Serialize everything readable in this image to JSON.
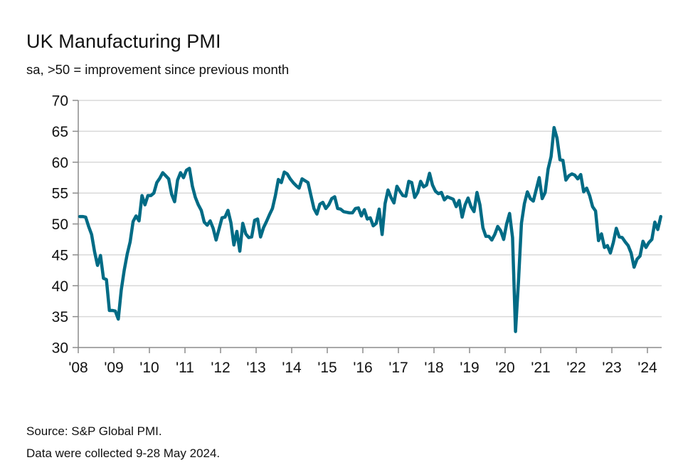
{
  "header": {
    "title": "UK Manufacturing PMI",
    "subtitle": "sa, >50 = improvement since previous month"
  },
  "footer": {
    "source": "Source: S&P Global PMI.",
    "note": "Data were collected 9-28 May 2024."
  },
  "colors": {
    "series": "#006b85",
    "grid": "#d9d9d9",
    "axis": "#8c8c8c"
  },
  "chart_data": {
    "type": "line",
    "title": "UK Manufacturing PMI",
    "subtitle": "sa, >50 = improvement since previous month",
    "xlabel": "",
    "ylabel": "",
    "ylim": [
      30,
      70
    ],
    "yticks": [
      30,
      35,
      40,
      45,
      50,
      55,
      60,
      65,
      70
    ],
    "xlim": [
      "2008-01",
      "2024-05"
    ],
    "xticks": [
      "'08",
      "'09",
      "'10",
      "'11",
      "'12",
      "'13",
      "'14",
      "'15",
      "'16",
      "'17",
      "'18",
      "'19",
      "'20",
      "'21",
      "'22",
      "'23",
      "'24"
    ],
    "grid": "horizontal",
    "legend": "none",
    "start": "2008-01",
    "frequency": "monthly",
    "series": [
      {
        "name": "UK Manufacturing PMI",
        "values": [
          51.2,
          51.2,
          51.1,
          49.6,
          48.3,
          45.5,
          43.3,
          44.9,
          41.2,
          41.0,
          36.0,
          36.0,
          35.9,
          34.6,
          39.3,
          42.5,
          45.1,
          47.1,
          50.4,
          51.3,
          50.5,
          54.6,
          53.1,
          54.6,
          54.6,
          55.0,
          56.7,
          57.4,
          58.3,
          57.8,
          57.3,
          54.8,
          53.6,
          57.1,
          58.3,
          57.5,
          58.7,
          59.0,
          56.1,
          54.3,
          53.1,
          52.2,
          50.3,
          49.8,
          50.5,
          49.3,
          47.4,
          49.2,
          51.0,
          51.1,
          52.2,
          50.2,
          46.6,
          48.8,
          45.6,
          50.1,
          48.4,
          47.8,
          47.9,
          50.6,
          50.8,
          47.9,
          49.4,
          50.4,
          51.5,
          52.5,
          54.6,
          57.2,
          56.7,
          58.4,
          58.1,
          57.3,
          56.7,
          56.2,
          55.8,
          57.3,
          57.0,
          56.7,
          54.6,
          52.5,
          51.6,
          53.2,
          53.5,
          52.5,
          53.1,
          54.1,
          54.4,
          52.5,
          52.4,
          52.0,
          51.9,
          51.8,
          51.8,
          52.5,
          52.6,
          51.3,
          52.3,
          50.8,
          51.0,
          49.7,
          50.1,
          52.4,
          48.3,
          53.3,
          55.5,
          54.3,
          53.4,
          56.1,
          55.3,
          54.6,
          54.5,
          56.9,
          56.7,
          54.3,
          55.1,
          56.9,
          56.0,
          56.3,
          58.2,
          56.3,
          55.3,
          54.9,
          55.1,
          53.9,
          54.4,
          54.2,
          54.0,
          52.8,
          53.8,
          51.1,
          53.1,
          54.2,
          52.8,
          52.0,
          55.1,
          53.1,
          49.4,
          48.0,
          48.0,
          47.4,
          48.3,
          49.6,
          48.9,
          47.5,
          50.0,
          51.7,
          47.8,
          32.6,
          40.7,
          50.1,
          53.3,
          55.2,
          54.1,
          53.7,
          55.6,
          57.5,
          54.1,
          55.1,
          58.9,
          60.9,
          65.6,
          63.9,
          60.4,
          60.3,
          57.1,
          57.8,
          58.1,
          57.9,
          57.3,
          58.0,
          55.2,
          55.8,
          54.6,
          52.8,
          52.1,
          47.3,
          48.4,
          46.2,
          46.5,
          45.3,
          47.0,
          49.3,
          47.9,
          47.8,
          47.1,
          46.5,
          45.3,
          43.0,
          44.3,
          44.8,
          47.2,
          46.2,
          47.0,
          47.5,
          50.3,
          49.1,
          51.2
        ]
      }
    ]
  }
}
